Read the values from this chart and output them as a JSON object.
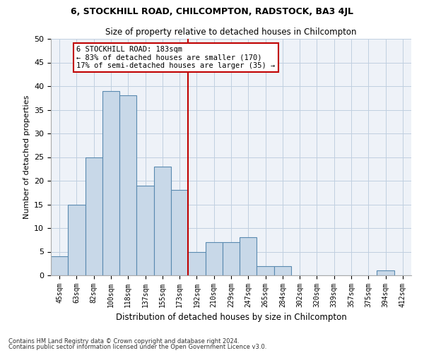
{
  "title1": "6, STOCKHILL ROAD, CHILCOMPTON, RADSTOCK, BA3 4JL",
  "title2": "Size of property relative to detached houses in Chilcompton",
  "xlabel": "Distribution of detached houses by size in Chilcompton",
  "ylabel": "Number of detached properties",
  "categories": [
    "45sqm",
    "63sqm",
    "82sqm",
    "100sqm",
    "118sqm",
    "137sqm",
    "155sqm",
    "173sqm",
    "192sqm",
    "210sqm",
    "229sqm",
    "247sqm",
    "265sqm",
    "284sqm",
    "302sqm",
    "320sqm",
    "339sqm",
    "357sqm",
    "375sqm",
    "394sqm",
    "412sqm"
  ],
  "values": [
    4,
    15,
    25,
    39,
    38,
    19,
    23,
    18,
    5,
    7,
    7,
    8,
    2,
    2,
    0,
    0,
    0,
    0,
    0,
    1,
    0
  ],
  "bar_color": "#c8d8e8",
  "bar_edgecolor": "#5a8ab0",
  "vline_color": "#c00000",
  "annotation_text": "6 STOCKHILL ROAD: 183sqm\n← 83% of detached houses are smaller (170)\n17% of semi-detached houses are larger (35) →",
  "annotation_box_color": "#c00000",
  "ylim": [
    0,
    50
  ],
  "yticks": [
    0,
    5,
    10,
    15,
    20,
    25,
    30,
    35,
    40,
    45,
    50
  ],
  "grid_color": "#c0cfe0",
  "background_color": "#eef2f8",
  "footer1": "Contains HM Land Registry data © Crown copyright and database right 2024.",
  "footer2": "Contains public sector information licensed under the Open Government Licence v3.0."
}
